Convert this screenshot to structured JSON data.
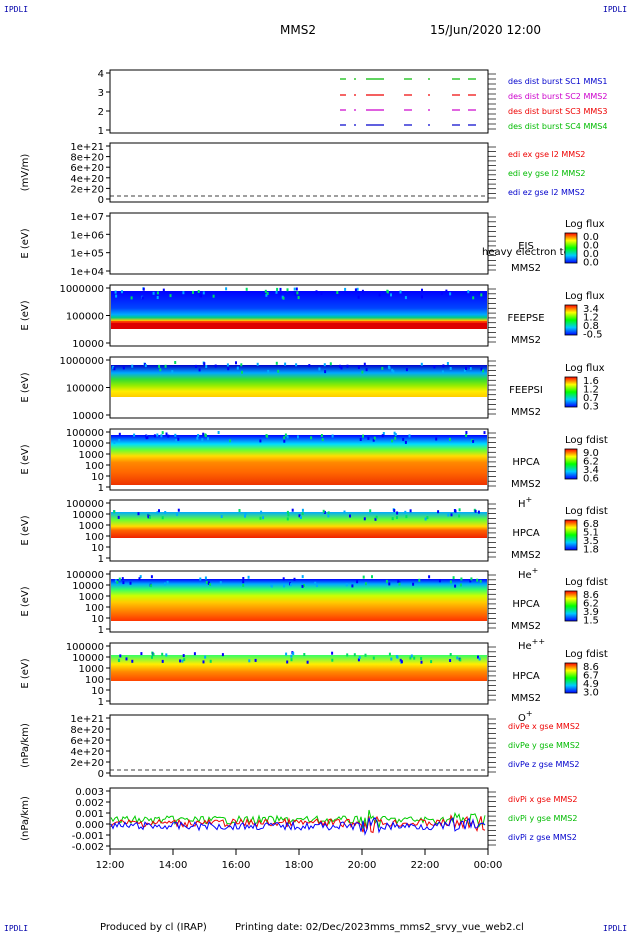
{
  "header": {
    "mission": "MMS2",
    "datetime": "15/Jun/2020 12:00",
    "logo": "IPDLI"
  },
  "footer": {
    "producer": "Produced by cl (IRAP)",
    "printing": "Printing date: 02/Dec/2023",
    "filename": "mms_mms2_srvy_vue_web2.cl"
  },
  "colors": {
    "red": "#ff0000",
    "green": "#00cc00",
    "blue": "#0000ff",
    "magenta": "#dd00dd",
    "legendblue": "#0000aa"
  },
  "chart_data": [
    {
      "type": "scatter",
      "ylabel": "",
      "ytick_labels": [
        "4",
        "3",
        "2",
        "1"
      ],
      "legend": [
        "des dist burst SC1 MMS1",
        "des dist burst SC2 MMS2",
        "des dist burst SC3 MMS3",
        "des dist burst SC4 MMS4"
      ],
      "legend_colors": [
        "#0000cc",
        "#cc00cc",
        "#ee0000",
        "#00bb00"
      ]
    },
    {
      "type": "line",
      "ylabel": "(mV/m)",
      "ytick_labels": [
        "1e+21",
        "8e+20",
        "6e+20",
        "4e+20",
        "2e+20",
        "0"
      ],
      "legend": [
        "edi ex gse l2 MMS2",
        "edi ey gse l2 MMS2",
        "edi ez gse l2 MMS2"
      ],
      "legend_colors": [
        "#ee0000",
        "#00bb00",
        "#0000cc"
      ]
    },
    {
      "type": "heatmap",
      "ylabel": "E (eV)",
      "ytick_labels": [
        "1e+07",
        "1e+06",
        "1e+05",
        "1e+04"
      ],
      "side": [
        "EIS",
        "MMS2"
      ],
      "overlay": "heavy electron to",
      "cb_title": "Log flux",
      "cb_labels": [
        "0.0",
        "0.0",
        "0.0",
        "0.0"
      ]
    },
    {
      "type": "heatmap",
      "ylabel": "E (eV)",
      "ytick_labels": [
        "1000000",
        "100000",
        "10000"
      ],
      "side": [
        "FEEPSE",
        "MMS2"
      ],
      "cb_title": "Log flux",
      "cb_labels": [
        "3.4",
        "1.2",
        "0.8",
        "-0.5"
      ]
    },
    {
      "type": "heatmap",
      "ylabel": "E (eV)",
      "ytick_labels": [
        "1000000",
        "100000",
        "10000"
      ],
      "side": [
        "FEEPSI",
        "MMS2"
      ],
      "cb_title": "Log flux",
      "cb_labels": [
        "1.6",
        "1.2",
        "0.7",
        "0.3"
      ]
    },
    {
      "type": "heatmap",
      "ylabel": "E (eV)",
      "ytick_labels": [
        "100000",
        "10000",
        "1000",
        "100",
        "10",
        "1"
      ],
      "side": [
        "HPCA",
        "MMS2"
      ],
      "species": "H",
      "charge": "+",
      "cb_title": "Log fdist",
      "cb_labels": [
        "9.0",
        "6.2",
        "3.4",
        "0.6"
      ]
    },
    {
      "type": "heatmap",
      "ylabel": "E (eV)",
      "ytick_labels": [
        "100000",
        "10000",
        "1000",
        "100",
        "10",
        "1"
      ],
      "side": [
        "HPCA",
        "MMS2"
      ],
      "species": "He",
      "charge": "+",
      "cb_title": "Log fdist",
      "cb_labels": [
        "6.8",
        "5.1",
        "3.5",
        "1.8"
      ]
    },
    {
      "type": "heatmap",
      "ylabel": "E (eV)",
      "ytick_labels": [
        "100000",
        "10000",
        "1000",
        "100",
        "10",
        "1"
      ],
      "side": [
        "HPCA",
        "MMS2"
      ],
      "species": "He",
      "charge": "++",
      "cb_title": "Log fdist",
      "cb_labels": [
        "8.6",
        "6.2",
        "3.9",
        "1.5"
      ]
    },
    {
      "type": "heatmap",
      "ylabel": "E (eV)",
      "ytick_labels": [
        "100000",
        "10000",
        "1000",
        "100",
        "10",
        "1"
      ],
      "side": [
        "HPCA",
        "MMS2"
      ],
      "species": "O",
      "charge": "+",
      "cb_title": "Log fdist",
      "cb_labels": [
        "8.6",
        "6.7",
        "4.9",
        "3.0"
      ]
    },
    {
      "type": "line",
      "ylabel": "(nPa/km)",
      "ytick_labels": [
        "1e+21",
        "8e+20",
        "6e+20",
        "4e+20",
        "2e+20",
        "0"
      ],
      "legend": [
        "divPe x gse MMS2",
        "divPe y gse MMS2",
        "divPe z gse MMS2"
      ],
      "legend_colors": [
        "#ee0000",
        "#00bb00",
        "#0000cc"
      ]
    },
    {
      "type": "line",
      "ylabel": "(nPa/km)",
      "ytick_labels": [
        "0.003",
        "0.002",
        "0.001",
        "0.000",
        "-0.001",
        "-0.002"
      ],
      "legend": [
        "divPi x gse MMS2",
        "divPi y gse MMS2",
        "divPi z gse MMS2"
      ],
      "legend_colors": [
        "#ee0000",
        "#00bb00",
        "#0000cc"
      ]
    }
  ],
  "x_axis": {
    "ticks": [
      "12:00",
      "14:00",
      "16:00",
      "18:00",
      "20:00",
      "22:00",
      "00:00"
    ]
  }
}
